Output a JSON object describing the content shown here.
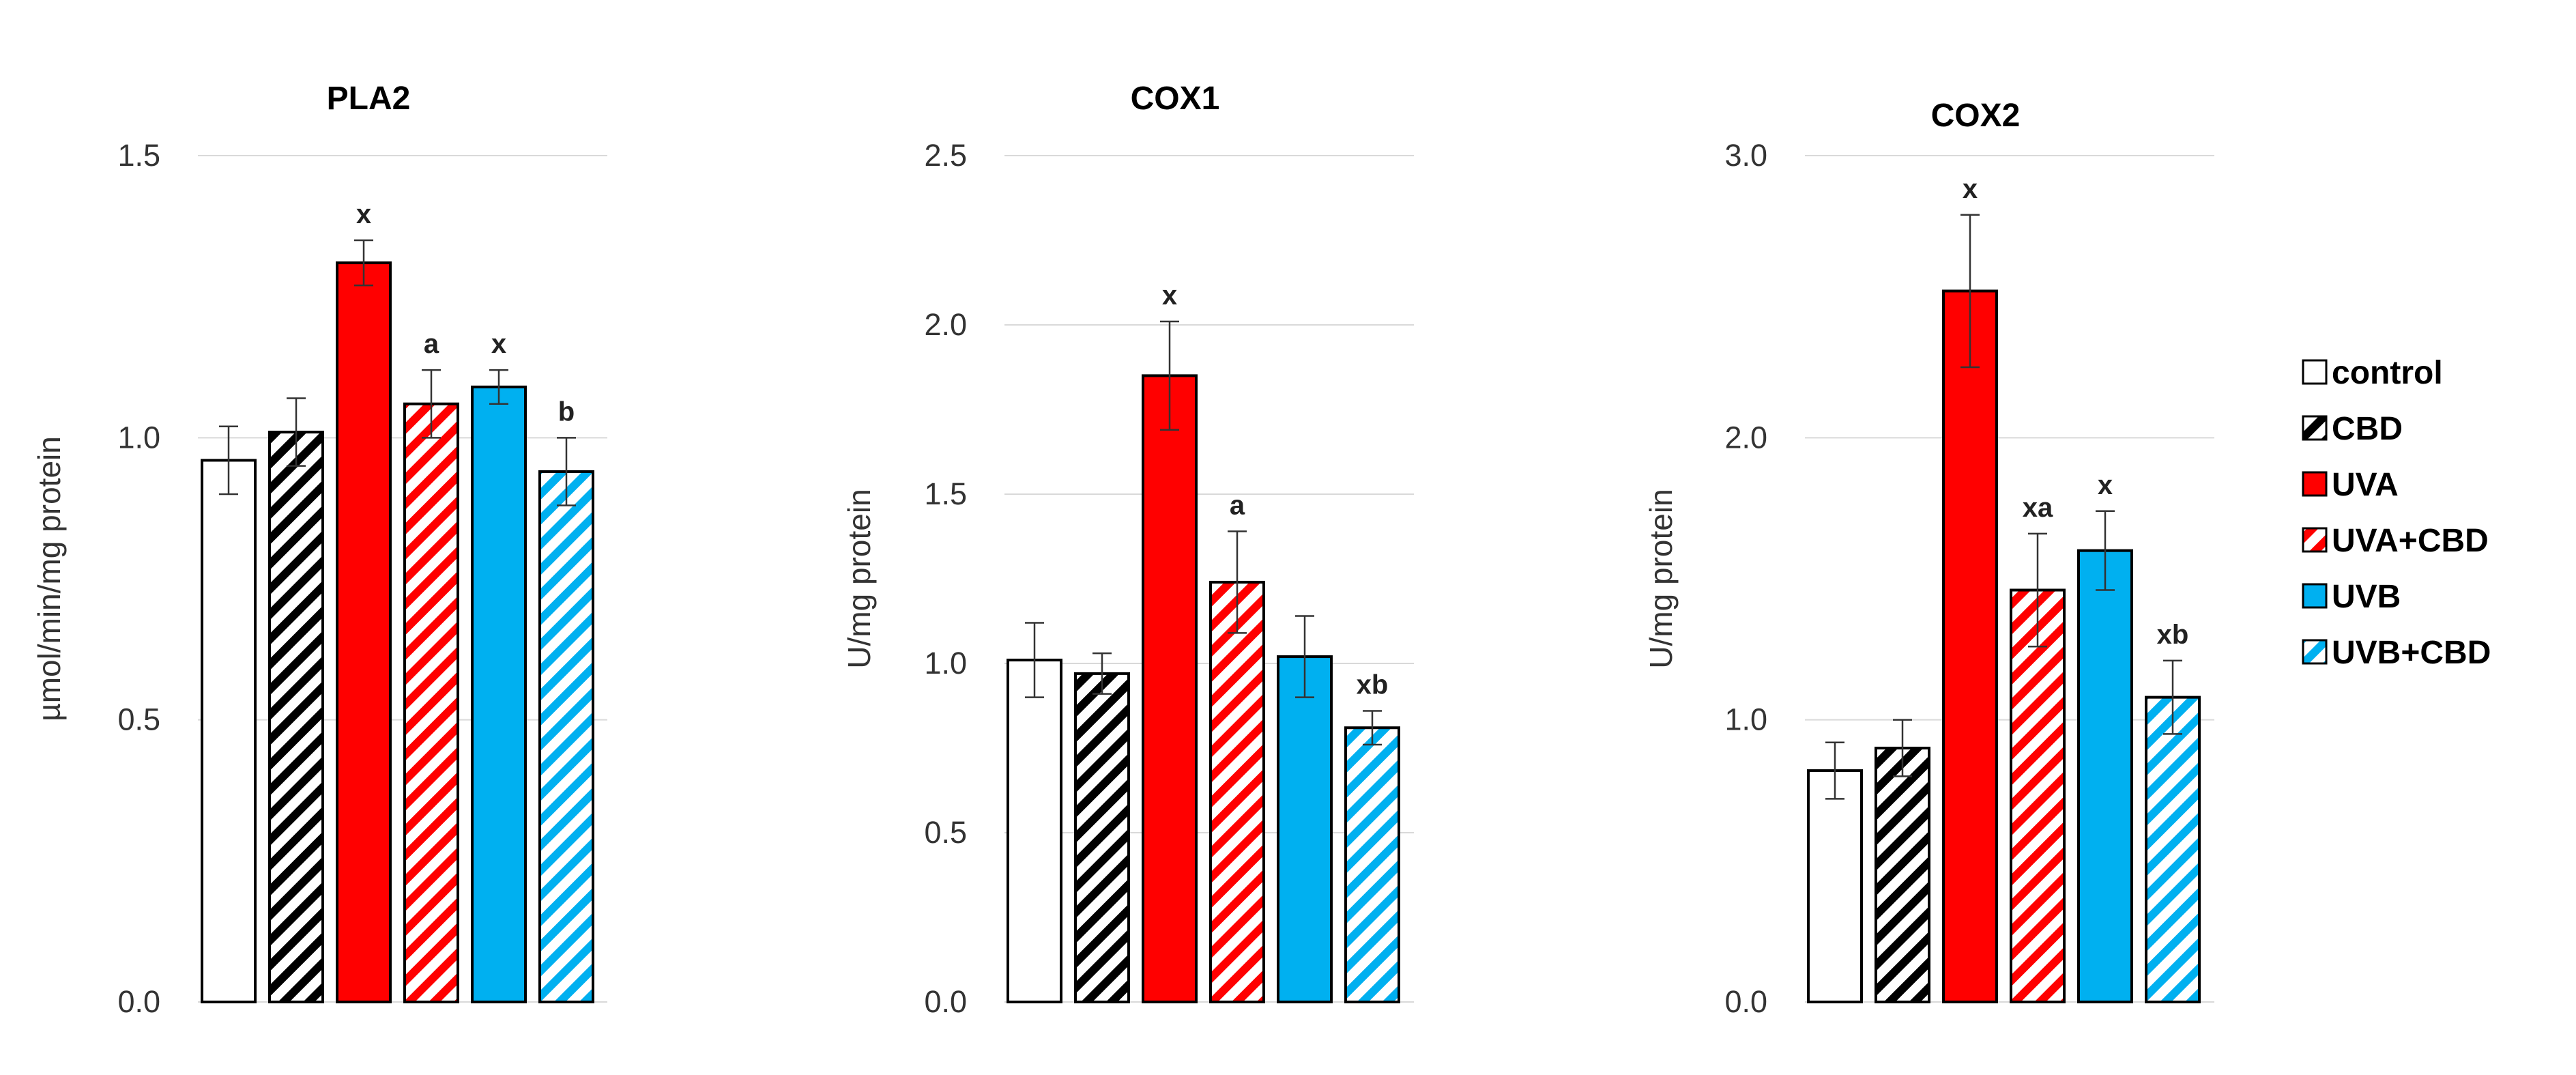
{
  "chart_data": [
    {
      "type": "bar",
      "title": "PLA2",
      "ylabel": "µmol/min/mg protein",
      "xlabel": "",
      "ylim": [
        0,
        1.5
      ],
      "yticks": [
        "0.0",
        "0.5",
        "1.0",
        "1.5"
      ],
      "grid": true,
      "categories": [
        "control",
        "CBD",
        "UVA",
        "UVA+CBD",
        "UVB",
        "UVB+CBD"
      ],
      "values": [
        0.96,
        1.01,
        1.31,
        1.06,
        1.09,
        0.94
      ],
      "errors": [
        0.06,
        0.06,
        0.04,
        0.06,
        0.03,
        0.06
      ],
      "annotations": [
        "",
        "",
        "x",
        "a",
        "x",
        "b"
      ]
    },
    {
      "type": "bar",
      "title": "COX1",
      "ylabel": "U/mg protein",
      "xlabel": "",
      "ylim": [
        0,
        2.5
      ],
      "yticks": [
        "0.0",
        "0.5",
        "1.0",
        "1.5",
        "2.0",
        "2.5"
      ],
      "grid": true,
      "categories": [
        "control",
        "CBD",
        "UVA",
        "UVA+CBD",
        "UVB",
        "UVB+CBD"
      ],
      "values": [
        1.01,
        0.97,
        1.85,
        1.24,
        1.02,
        0.81
      ],
      "errors": [
        0.11,
        0.06,
        0.16,
        0.15,
        0.12,
        0.05
      ],
      "annotations": [
        "",
        "",
        "x",
        "a",
        "",
        "xb"
      ]
    },
    {
      "type": "bar",
      "title": "COX2",
      "ylabel": "U/mg protein",
      "xlabel": "",
      "ylim": [
        0,
        3.0
      ],
      "yticks": [
        "0.0",
        "1.0",
        "2.0",
        "3.0"
      ],
      "grid": true,
      "categories": [
        "control",
        "CBD",
        "UVA",
        "UVA+CBD",
        "UVB",
        "UVB+CBD"
      ],
      "values": [
        0.82,
        0.9,
        2.52,
        1.46,
        1.6,
        1.08
      ],
      "errors": [
        0.1,
        0.1,
        0.27,
        0.2,
        0.14,
        0.13
      ],
      "annotations": [
        "",
        "",
        "x",
        "xa",
        "x",
        "xb"
      ]
    }
  ],
  "legend": {
    "placement": "right",
    "entries": [
      {
        "label": "control",
        "color": "#ffffff",
        "pattern": "solid"
      },
      {
        "label": "CBD",
        "color": "#000000",
        "pattern": "hatched"
      },
      {
        "label": "UVA",
        "color": "#ff0000",
        "pattern": "solid"
      },
      {
        "label": "UVA+CBD",
        "color": "#ff0000",
        "pattern": "hatched"
      },
      {
        "label": "UVB",
        "color": "#00b0f0",
        "pattern": "solid"
      },
      {
        "label": "UVB+CBD",
        "color": "#00b0f0",
        "pattern": "hatched"
      }
    ]
  }
}
